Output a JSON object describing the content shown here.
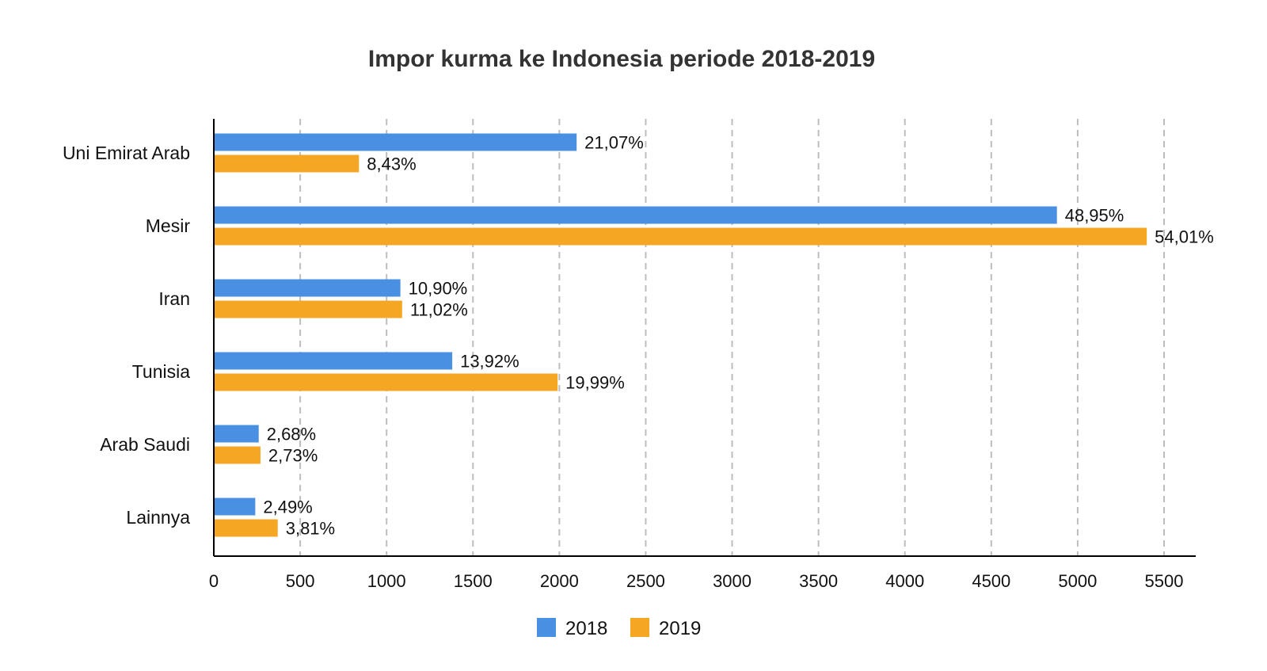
{
  "chart_data": {
    "type": "bar",
    "orientation": "horizontal",
    "title": "Impor kurma ke Indonesia periode 2018-2019",
    "categories": [
      "Uni Emirat Arab",
      "Mesir",
      "Iran",
      "Tunisia",
      "Arab Saudi",
      "Lainnya"
    ],
    "series": [
      {
        "name": "2018",
        "color": "#4a90e2",
        "values": [
          2100,
          4880,
          1080,
          1380,
          260,
          240
        ],
        "labels": [
          "21,07%",
          "48,95%",
          "10,90%",
          "13,92%",
          "2,68%",
          "2,49%"
        ]
      },
      {
        "name": "2019",
        "color": "#f5a623",
        "values": [
          840,
          5400,
          1090,
          1990,
          270,
          370
        ],
        "labels": [
          "8,43%",
          "54,01%",
          "11,02%",
          "19,99%",
          "2,73%",
          "3,81%"
        ]
      }
    ],
    "xlim": [
      0,
      5500
    ],
    "xticks": [
      "0",
      "500",
      "1000",
      "1500",
      "2000",
      "2500",
      "3000",
      "3500",
      "4000",
      "4500",
      "5000",
      "5500"
    ],
    "xtick_values": [
      0,
      500,
      1000,
      1500,
      2000,
      2500,
      3000,
      3500,
      4000,
      4500,
      5000,
      5500
    ],
    "grid": true,
    "legend_position": "bottom"
  }
}
